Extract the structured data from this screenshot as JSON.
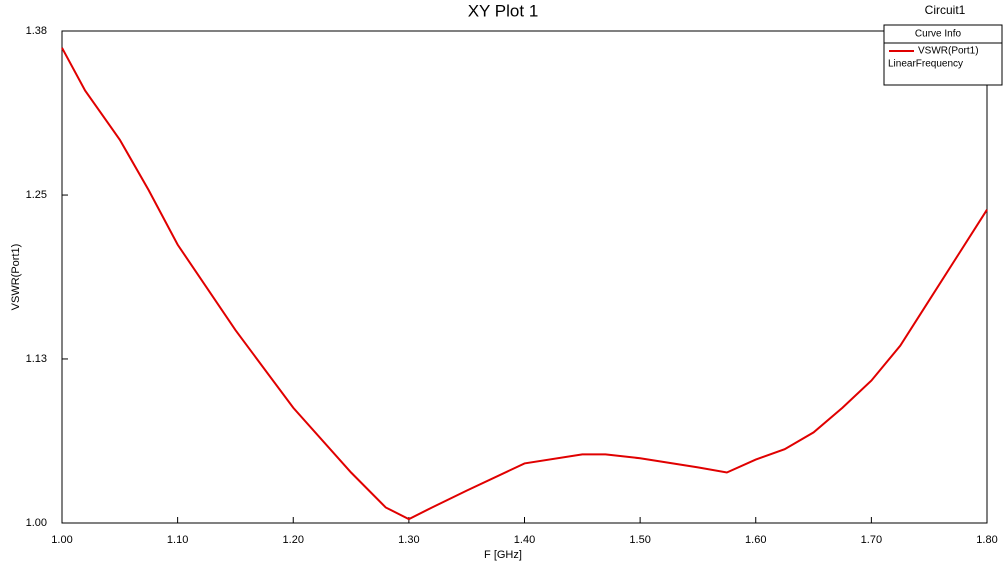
{
  "chart_data": {
    "type": "line",
    "title": "XY Plot 1",
    "project_label": "Circuit1",
    "x_label": "F [GHz]",
    "y_label": "VSWR(Port1)",
    "legend_title": "Curve Info",
    "legend_subtitle": "LinearFrequency",
    "x": [
      1.0,
      1.02,
      1.05,
      1.075,
      1.1,
      1.15,
      1.2,
      1.25,
      1.28,
      1.3,
      1.32,
      1.35,
      1.4,
      1.45,
      1.47,
      1.5,
      1.55,
      1.575,
      1.6,
      1.625,
      1.65,
      1.675,
      1.7,
      1.725,
      1.75,
      1.775,
      1.8
    ],
    "series": [
      {
        "name": "VSWR(Port1)",
        "color": "#e00000",
        "values": [
          1.367,
          1.334,
          1.296,
          1.257,
          1.215,
          1.149,
          1.089,
          1.039,
          1.012,
          1.003,
          1.012,
          1.025,
          1.046,
          1.053,
          1.053,
          1.05,
          1.043,
          1.039,
          1.049,
          1.057,
          1.07,
          1.089,
          1.11,
          1.137,
          1.172,
          1.207,
          1.242
        ]
      }
    ],
    "xlim": [
      1.0,
      1.8
    ],
    "xticks": [
      {
        "value": 1.0,
        "label": "1.00"
      },
      {
        "value": 1.1,
        "label": "1.10"
      },
      {
        "value": 1.2,
        "label": "1.20"
      },
      {
        "value": 1.3,
        "label": "1.30"
      },
      {
        "value": 1.4,
        "label": "1.40"
      },
      {
        "value": 1.5,
        "label": "1.50"
      },
      {
        "value": 1.6,
        "label": "1.60"
      },
      {
        "value": 1.7,
        "label": "1.70"
      },
      {
        "value": 1.8,
        "label": "1.80"
      }
    ],
    "ylim": [
      1.0,
      1.38
    ],
    "yticks": [
      {
        "value": 1.0,
        "label": "1.00"
      },
      {
        "value": 1.1267,
        "label": "1.13"
      },
      {
        "value": 1.2533,
        "label": "1.25"
      },
      {
        "value": 1.38,
        "label": "1.38"
      }
    ],
    "legend_position": "upper right"
  }
}
